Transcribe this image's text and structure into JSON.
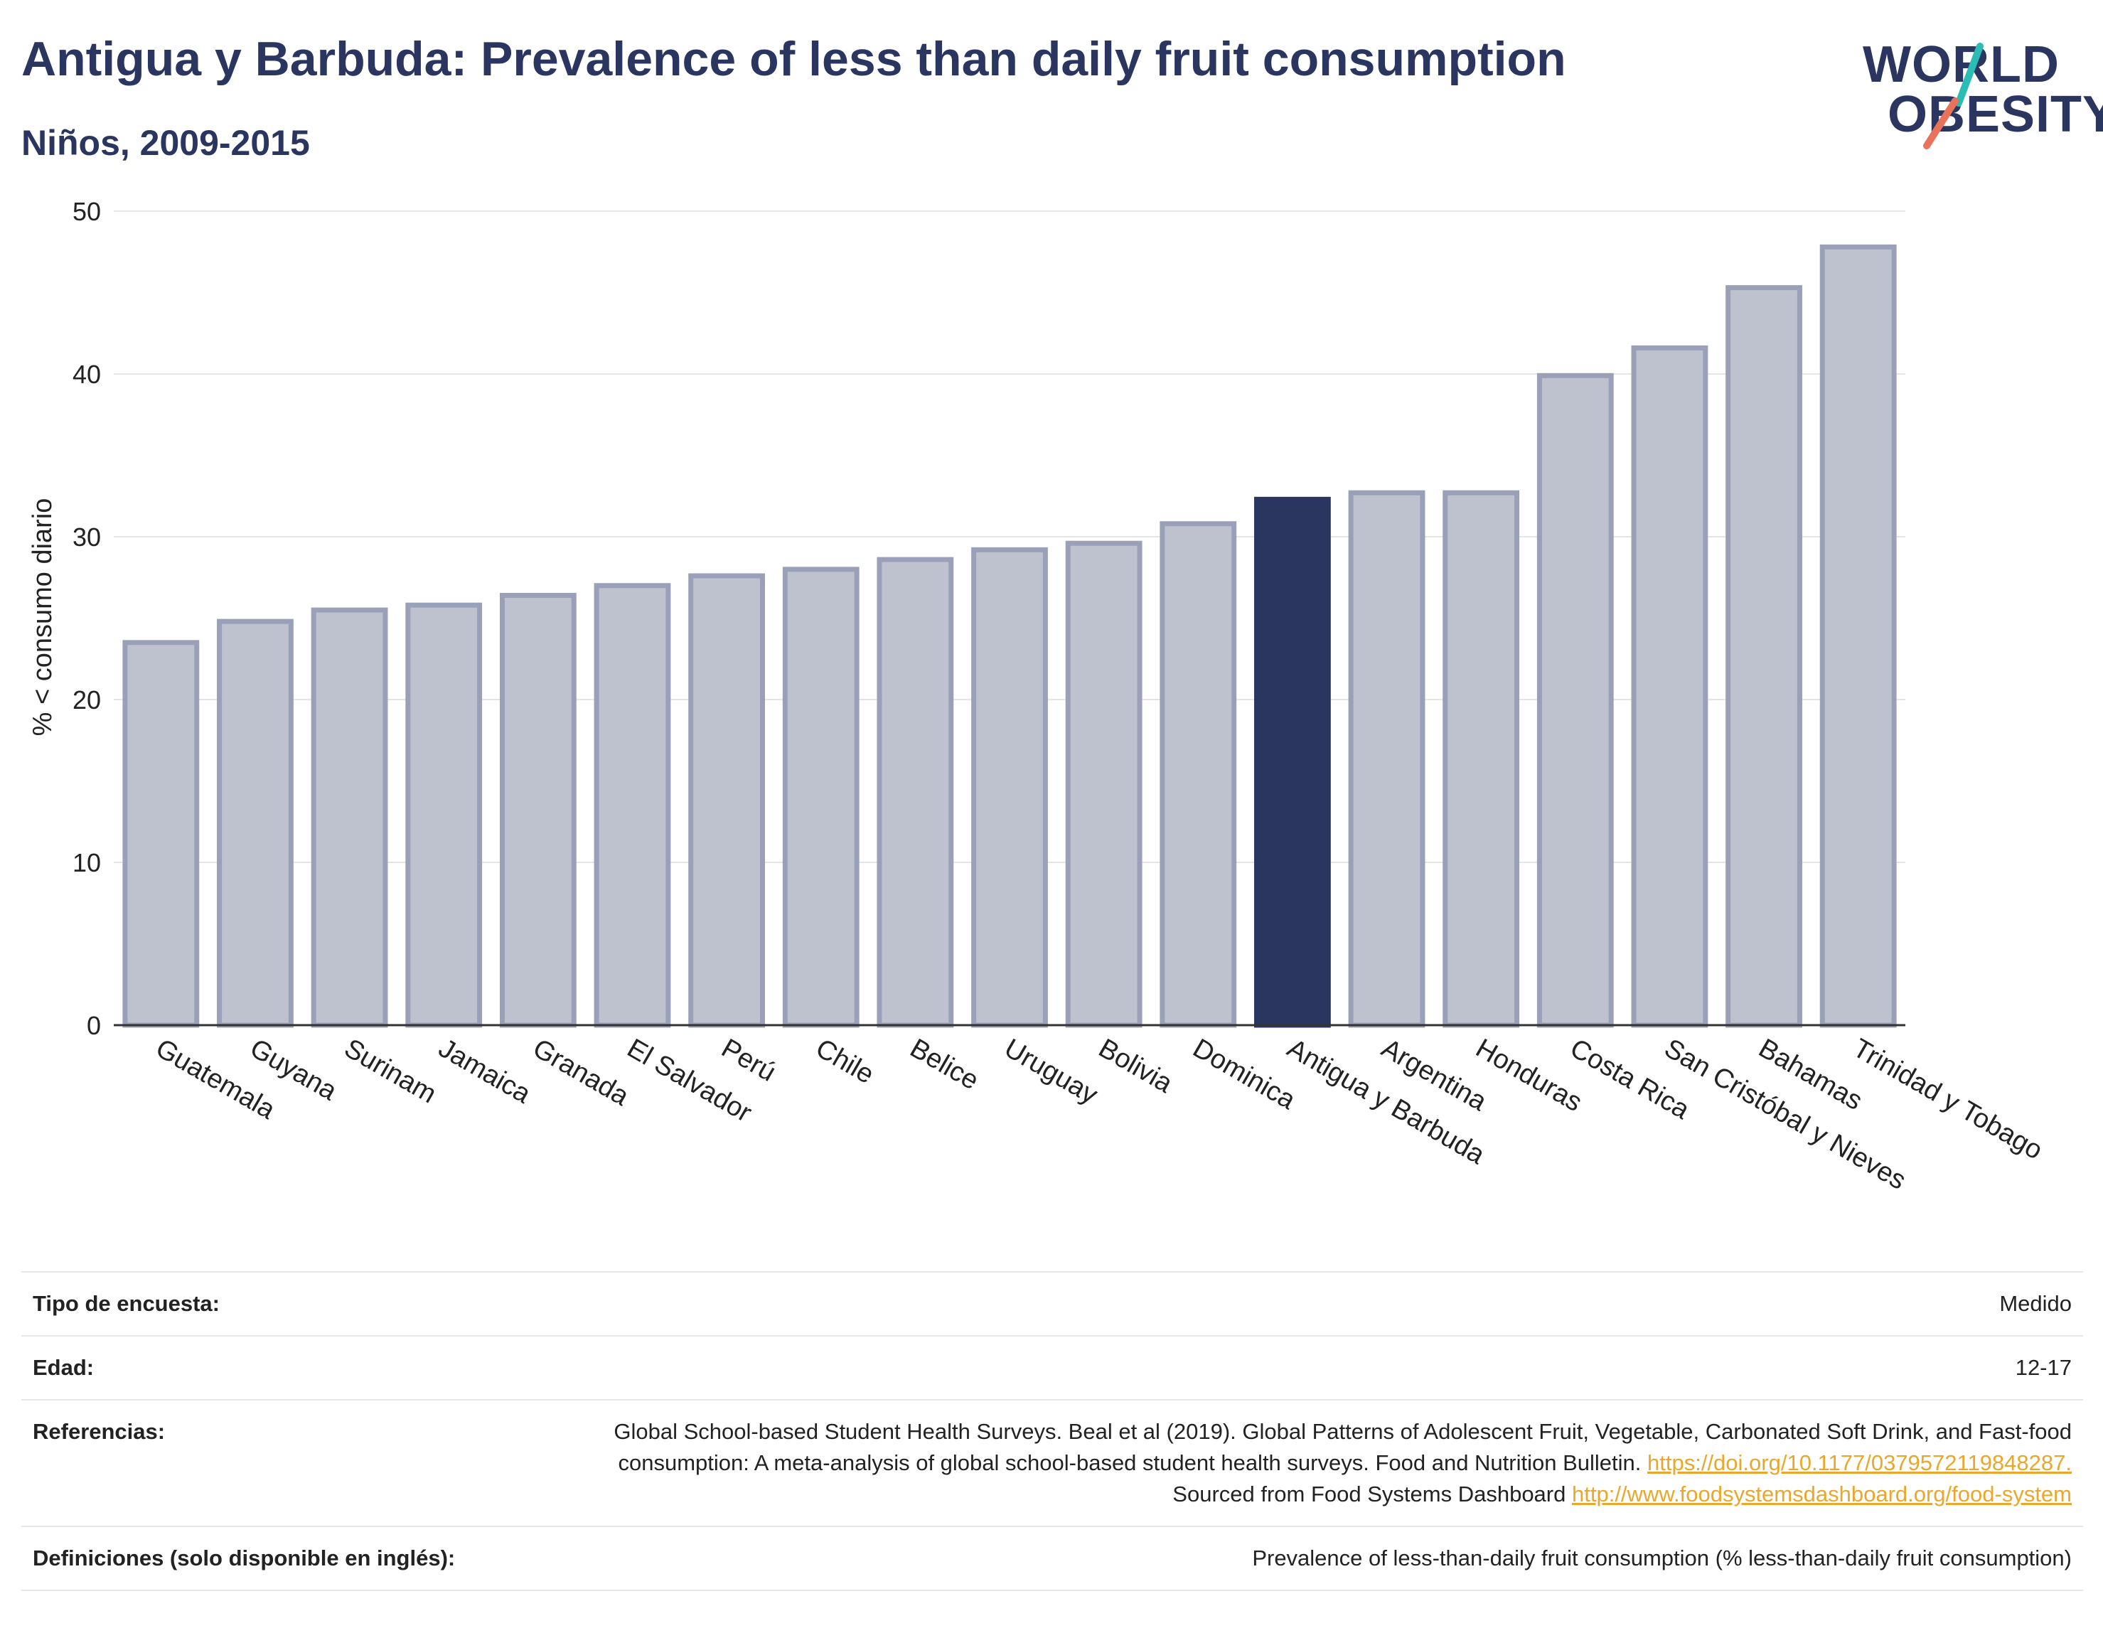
{
  "title": "Antigua y Barbuda: Prevalence of less than daily fruit consumption",
  "subtitle": "Niños, 2009-2015",
  "logo": {
    "line1": "WORLD",
    "line2": "OBESITY",
    "accent_teal": "#2bbcb3",
    "accent_coral": "#e8735a"
  },
  "colors": {
    "highlight": "#2a365f",
    "bar_fill": "#bec2cf",
    "bar_stroke": "#9aa0b8",
    "axis": "#333333",
    "grid": "#e5e5e5"
  },
  "chart_data": {
    "type": "bar",
    "ylabel": "% < consumo diario",
    "ylim": [
      0,
      50
    ],
    "yticks": [
      0,
      10,
      20,
      30,
      40,
      50
    ],
    "grid": true,
    "highlight": "Antigua y Barbuda",
    "categories": [
      "Guatemala",
      "Guyana",
      "Surinam",
      "Jamaica",
      "Granada",
      "El Salvador",
      "Perú",
      "Chile",
      "Belice",
      "Uruguay",
      "Bolivia",
      "Dominica",
      "Antigua y Barbuda",
      "Argentina",
      "Honduras",
      "Costa Rica",
      "San Cristóbal y Nieves",
      "Bahamas",
      "Trinidad y Tobago"
    ],
    "values": [
      23.5,
      24.8,
      25.5,
      25.8,
      26.4,
      27.0,
      27.6,
      28.0,
      28.6,
      29.2,
      29.6,
      30.8,
      32.3,
      32.7,
      32.7,
      39.9,
      41.6,
      45.3,
      47.8
    ]
  },
  "meta": {
    "survey_label": "Tipo de encuesta:",
    "survey_value": "Medido",
    "age_label": "Edad:",
    "age_value": "12-17",
    "refs_label": "Referencias:",
    "refs_text_1": "Global School-based Student Health Surveys. Beal et al (2019). Global Patterns of Adolescent Fruit, Vegetable, Carbonated Soft Drink, and Fast-food consumption: A meta-analysis of global school-based student health surveys. Food and Nutrition Bulletin.",
    "refs_link_1": "https://doi.org/10.1177/0379572119848287.",
    "refs_text_2": "Sourced from Food Systems Dashboard",
    "refs_link_2": "http://www.foodsystemsdashboard.org/food-system",
    "defs_label": "Definiciones (solo disponible en inglés):",
    "defs_value": "Prevalence of less-than-daily fruit consumption (% less-than-daily fruit consumption)"
  }
}
